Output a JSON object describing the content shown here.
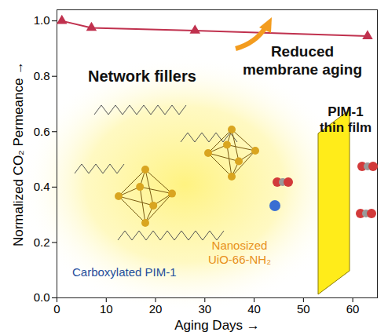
{
  "chart_data": {
    "type": "line",
    "x_label": "Aging Days",
    "y_label": "Normalized CO₂ Permeance",
    "x": [
      1,
      7,
      28,
      63
    ],
    "values": [
      1.0,
      0.975,
      0.965,
      0.945
    ],
    "color": "#c0314e",
    "marker": "triangle",
    "xlim": [
      0,
      65
    ],
    "xticks": [
      0,
      10,
      20,
      30,
      40,
      50,
      60
    ],
    "ylim": [
      0,
      1.04
    ],
    "yticks": [
      {
        "value": 0,
        "label": "0.0"
      },
      0.2,
      0.4,
      0.6,
      0.8,
      {
        "value": 1,
        "label": "1.0"
      }
    ],
    "grid": false,
    "annotations": {
      "fillers": "Network fillers",
      "aging": [
        "Reduced",
        "membrane aging"
      ],
      "film": [
        "PIM-1",
        "thin film"
      ],
      "mof": [
        "Nanosized",
        "UiO-66-NH₂"
      ],
      "polymer": "Carboxylated PIM-1"
    }
  }
}
